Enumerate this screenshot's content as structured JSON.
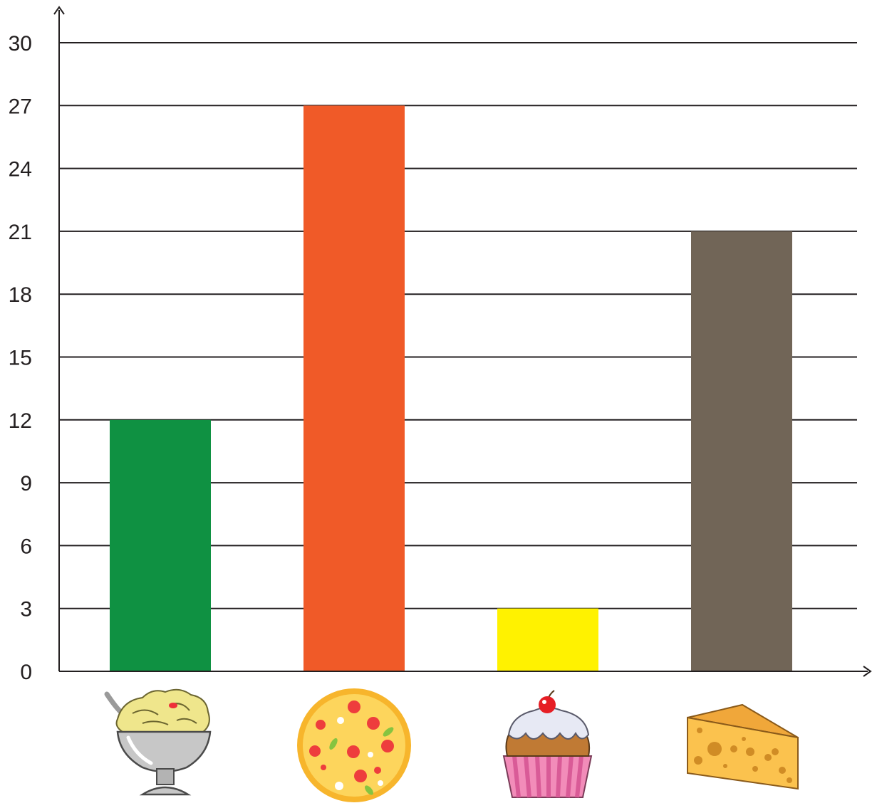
{
  "chart_data": {
    "type": "bar",
    "categories": [
      "ice-cream",
      "pizza",
      "cupcake",
      "cheese"
    ],
    "values": [
      12,
      27,
      3,
      21
    ],
    "colors": [
      "#0f9142",
      "#f05a28",
      "#fff200",
      "#716557"
    ],
    "ylim": [
      0,
      30
    ],
    "yticks": [
      "0",
      "3",
      "6",
      "9",
      "12",
      "15",
      "18",
      "21",
      "24",
      "27",
      "30"
    ],
    "grid": true,
    "category_icons": [
      "ice-cream-sundae-icon",
      "pizza-icon",
      "cupcake-icon",
      "cheese-icon"
    ]
  }
}
